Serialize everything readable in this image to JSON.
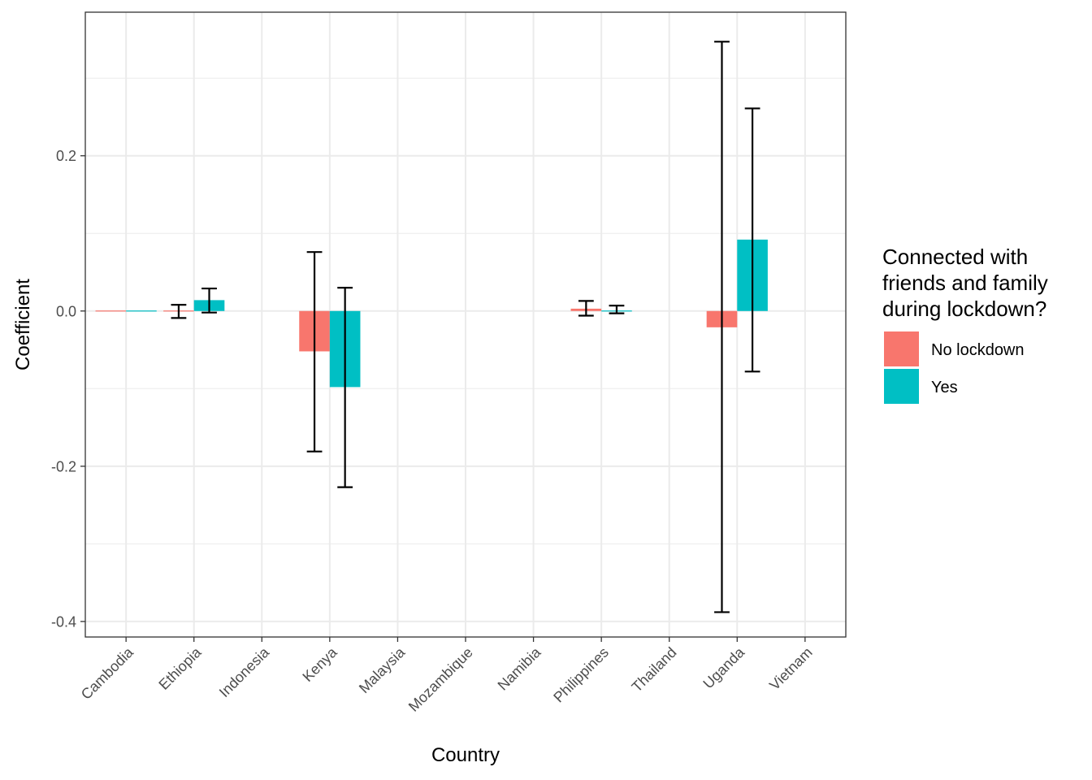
{
  "chart_data": {
    "type": "bar",
    "xlabel": "Country",
    "ylabel": "Coefficient",
    "categories": [
      "Cambodia",
      "Ethiopia",
      "Indonesia",
      "Kenya",
      "Malaysia",
      "Mozambique",
      "Namibia",
      "Philippines",
      "Thailand",
      "Uganda",
      "Vietnam"
    ],
    "ylim": [
      -0.42,
      0.385
    ],
    "y_ticks": [
      -0.4,
      -0.2,
      0.0,
      0.2
    ],
    "y_tick_labels": [
      "-0.4",
      "-0.2",
      "0.0",
      "0.2"
    ],
    "grid": true,
    "legend_position": "right",
    "legend": {
      "title_lines": [
        "Connected with",
        "friends and family",
        "during lockdown?"
      ]
    },
    "series": [
      {
        "name": "No lockdown",
        "color": "#F8766D",
        "values": [
          0.0,
          0.0,
          null,
          -0.052,
          null,
          null,
          null,
          0.003,
          null,
          -0.021,
          null
        ],
        "error_low": [
          null,
          -0.009,
          null,
          -0.181,
          null,
          null,
          null,
          -0.006,
          null,
          -0.388,
          null
        ],
        "error_high": [
          null,
          0.008,
          null,
          0.076,
          null,
          null,
          null,
          0.013,
          null,
          0.347,
          null
        ]
      },
      {
        "name": "Yes",
        "color": "#00BFC4",
        "values": [
          0.0,
          0.014,
          null,
          -0.098,
          null,
          null,
          null,
          0.001,
          null,
          0.092,
          null
        ],
        "error_low": [
          null,
          -0.002,
          null,
          -0.227,
          null,
          null,
          null,
          -0.003,
          null,
          -0.078,
          null
        ],
        "error_high": [
          null,
          0.029,
          null,
          0.03,
          null,
          null,
          null,
          0.007,
          null,
          0.261,
          null
        ]
      }
    ]
  }
}
